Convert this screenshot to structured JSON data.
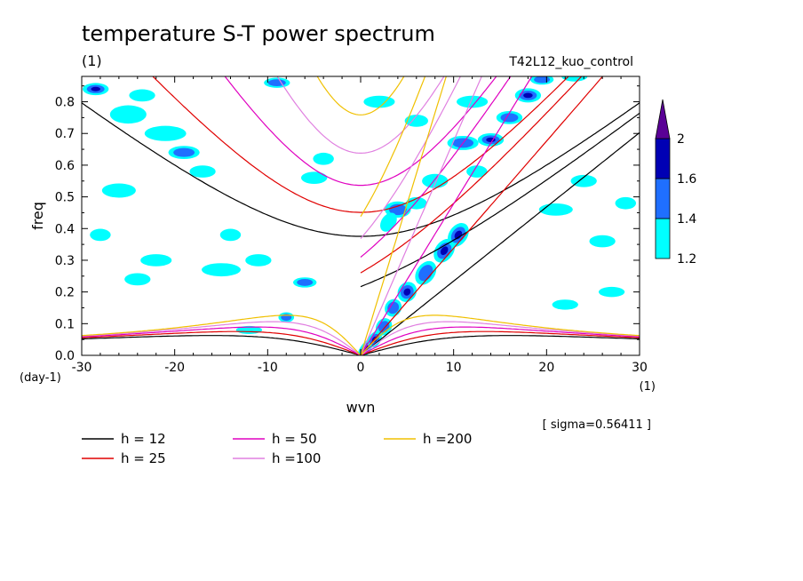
{
  "chart_data": {
    "type": "heatmap",
    "title": "temperature S-T power spectrum",
    "subtitle_left": "(1)",
    "subtitle_right": "T42L12_kuo_control",
    "xlabel": "wvn",
    "ylabel": "freq",
    "x_unit": "(1)",
    "y_unit": "(day-1)",
    "xlim": [
      -30,
      30
    ],
    "ylim": [
      0,
      0.88
    ],
    "x_ticks": [
      -30,
      -20,
      -10,
      0,
      10,
      20,
      30
    ],
    "y_ticks": [
      0.0,
      0.1,
      0.2,
      0.3,
      0.4,
      0.5,
      0.6,
      0.7,
      0.8
    ],
    "x_tick_labels": [
      "-30",
      "-20",
      "-10",
      "0",
      "10",
      "20",
      "30"
    ],
    "y_tick_labels": [
      "0.0",
      "0.1",
      "0.2",
      "0.3",
      "0.4",
      "0.5",
      "0.6",
      "0.7",
      "0.8"
    ],
    "note": "[ sigma=0.56411 ]",
    "colorbar": {
      "levels": [
        "1.2",
        "1.4",
        "1.6",
        "2"
      ],
      "colors": [
        "#00ffff",
        "#1f6fff",
        "#0000b4",
        "#5a0096"
      ]
    },
    "dispersion_curves": [
      {
        "label": "h = 12",
        "h": 12,
        "color": "#000000"
      },
      {
        "label": "h = 25",
        "h": 25,
        "color": "#e00000"
      },
      {
        "label": "h = 50",
        "h": 50,
        "color": "#e000c0"
      },
      {
        "label": "h =100",
        "h": 100,
        "color": "#e080e0"
      },
      {
        "label": "h =200",
        "h": 200,
        "color": "#f0c000"
      }
    ],
    "signal_blobs": [
      {
        "x": -28.5,
        "y": 0.84,
        "level": 3,
        "sx": 1.0,
        "sy": 0.012
      },
      {
        "x": -25,
        "y": 0.76,
        "level": 1,
        "sx": 1.4,
        "sy": 0.018
      },
      {
        "x": -23.5,
        "y": 0.82,
        "level": 1,
        "sx": 1.0,
        "sy": 0.012
      },
      {
        "x": -21,
        "y": 0.7,
        "level": 1,
        "sx": 1.6,
        "sy": 0.015
      },
      {
        "x": -19,
        "y": 0.64,
        "level": 2,
        "sx": 1.2,
        "sy": 0.013
      },
      {
        "x": -17,
        "y": 0.58,
        "level": 1,
        "sx": 1.0,
        "sy": 0.012
      },
      {
        "x": -26,
        "y": 0.52,
        "level": 1,
        "sx": 1.3,
        "sy": 0.014
      },
      {
        "x": -28,
        "y": 0.38,
        "level": 1,
        "sx": 0.8,
        "sy": 0.012
      },
      {
        "x": -22,
        "y": 0.3,
        "level": 1,
        "sx": 1.2,
        "sy": 0.012
      },
      {
        "x": -15,
        "y": 0.27,
        "level": 1,
        "sx": 1.5,
        "sy": 0.013
      },
      {
        "x": -11,
        "y": 0.3,
        "level": 1,
        "sx": 1.0,
        "sy": 0.012
      },
      {
        "x": -6,
        "y": 0.23,
        "level": 2,
        "sx": 0.9,
        "sy": 0.01
      },
      {
        "x": -24,
        "y": 0.24,
        "level": 1,
        "sx": 1.0,
        "sy": 0.012
      },
      {
        "x": -9,
        "y": 0.86,
        "level": 2,
        "sx": 1.0,
        "sy": 0.01
      },
      {
        "x": -4,
        "y": 0.62,
        "level": 1,
        "sx": 0.8,
        "sy": 0.012
      },
      {
        "x": -5,
        "y": 0.56,
        "level": 1,
        "sx": 1.0,
        "sy": 0.012
      },
      {
        "x": 2,
        "y": 0.8,
        "level": 1,
        "sx": 1.2,
        "sy": 0.012
      },
      {
        "x": 6,
        "y": 0.74,
        "level": 1,
        "sx": 0.9,
        "sy": 0.012
      },
      {
        "x": 12,
        "y": 0.8,
        "level": 1,
        "sx": 1.2,
        "sy": 0.012
      },
      {
        "x": -8,
        "y": 0.12,
        "level": 2,
        "sx": 0.6,
        "sy": 0.01
      },
      {
        "x": -12,
        "y": 0.08,
        "level": 1,
        "sx": 1.0,
        "sy": 0.008
      },
      {
        "x": 21,
        "y": 0.46,
        "level": 1,
        "sx": 1.3,
        "sy": 0.012
      },
      {
        "x": 24,
        "y": 0.55,
        "level": 1,
        "sx": 1.0,
        "sy": 0.012
      },
      {
        "x": 26,
        "y": 0.36,
        "level": 1,
        "sx": 1.0,
        "sy": 0.012
      },
      {
        "x": 22,
        "y": 0.16,
        "level": 1,
        "sx": 1.0,
        "sy": 0.01
      },
      {
        "x": 27,
        "y": 0.2,
        "level": 1,
        "sx": 1.0,
        "sy": 0.01
      },
      {
        "x": 28.5,
        "y": 0.48,
        "level": 1,
        "sx": 0.8,
        "sy": 0.012
      },
      {
        "x": -14,
        "y": 0.38,
        "level": 1,
        "sx": 0.8,
        "sy": 0.012
      },
      {
        "x": 0.5,
        "y": 0.02,
        "level": 3,
        "sx": 0.9,
        "sy": 0.01
      },
      {
        "x": 1.5,
        "y": 0.05,
        "level": 3,
        "sx": 0.7,
        "sy": 0.012
      },
      {
        "x": 2.5,
        "y": 0.09,
        "level": 2,
        "sx": 0.7,
        "sy": 0.015
      },
      {
        "x": 3.5,
        "y": 0.15,
        "level": 2,
        "sx": 0.7,
        "sy": 0.016
      },
      {
        "x": 5,
        "y": 0.2,
        "level": 3,
        "sx": 0.8,
        "sy": 0.018
      },
      {
        "x": 7,
        "y": 0.26,
        "level": 2,
        "sx": 1.0,
        "sy": 0.018
      },
      {
        "x": 9,
        "y": 0.33,
        "level": 3,
        "sx": 1.0,
        "sy": 0.018
      },
      {
        "x": 10.5,
        "y": 0.38,
        "level": 3,
        "sx": 1.0,
        "sy": 0.018
      },
      {
        "x": 4,
        "y": 0.46,
        "level": 2,
        "sx": 1.0,
        "sy": 0.016
      },
      {
        "x": 3,
        "y": 0.42,
        "level": 1,
        "sx": 0.8,
        "sy": 0.014
      },
      {
        "x": 8,
        "y": 0.55,
        "level": 1,
        "sx": 1.0,
        "sy": 0.014
      },
      {
        "x": 11,
        "y": 0.67,
        "level": 2,
        "sx": 1.2,
        "sy": 0.014
      },
      {
        "x": 14,
        "y": 0.68,
        "level": 3,
        "sx": 1.0,
        "sy": 0.013
      },
      {
        "x": 16,
        "y": 0.75,
        "level": 2,
        "sx": 1.0,
        "sy": 0.013
      },
      {
        "x": 18,
        "y": 0.82,
        "level": 3,
        "sx": 1.0,
        "sy": 0.014
      },
      {
        "x": 19.5,
        "y": 0.87,
        "level": 2,
        "sx": 0.9,
        "sy": 0.01
      },
      {
        "x": 6,
        "y": 0.48,
        "level": 1,
        "sx": 0.8,
        "sy": 0.012
      },
      {
        "x": 23,
        "y": 0.88,
        "level": 1,
        "sx": 1.0,
        "sy": 0.01
      },
      {
        "x": 12.5,
        "y": 0.58,
        "level": 1,
        "sx": 0.8,
        "sy": 0.012
      }
    ]
  }
}
